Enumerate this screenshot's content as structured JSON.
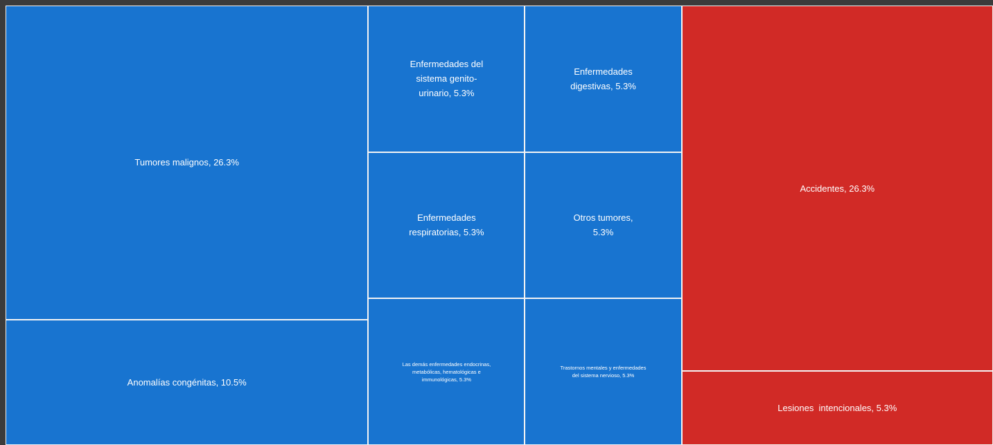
{
  "chart_data": {
    "type": "treemap",
    "value_labels": [
      "Tumores malignos, 26.3%",
      "Anomalías congénitas, 10.5%",
      "Enfermedades del sistema genito-urinario, 5.3%",
      "Enfermedades digestivas, 5.3%",
      "Enfermedades respiratorias, 5.3%",
      "Otros tumores, 5.3%",
      "Las demás enfermedades endocrinas, metabólicas, hematológicas e immunológicas, 5.3%",
      "Trastornos mentales y enfermedades del sistema nervioso, 5.3%",
      "Accidentes, 26.3%",
      "Lesiones  intencionales, 5.3%"
    ],
    "values": [
      26.3,
      10.5,
      5.3,
      5.3,
      5.3,
      5.3,
      5.3,
      5.3,
      26.3,
      5.3
    ],
    "colors": [
      "#1874d0",
      "#1874d0",
      "#1874d0",
      "#1874d0",
      "#1874d0",
      "#1874d0",
      "#1874d0",
      "#1874d0",
      "#d12a26",
      "#d12a26"
    ]
  }
}
